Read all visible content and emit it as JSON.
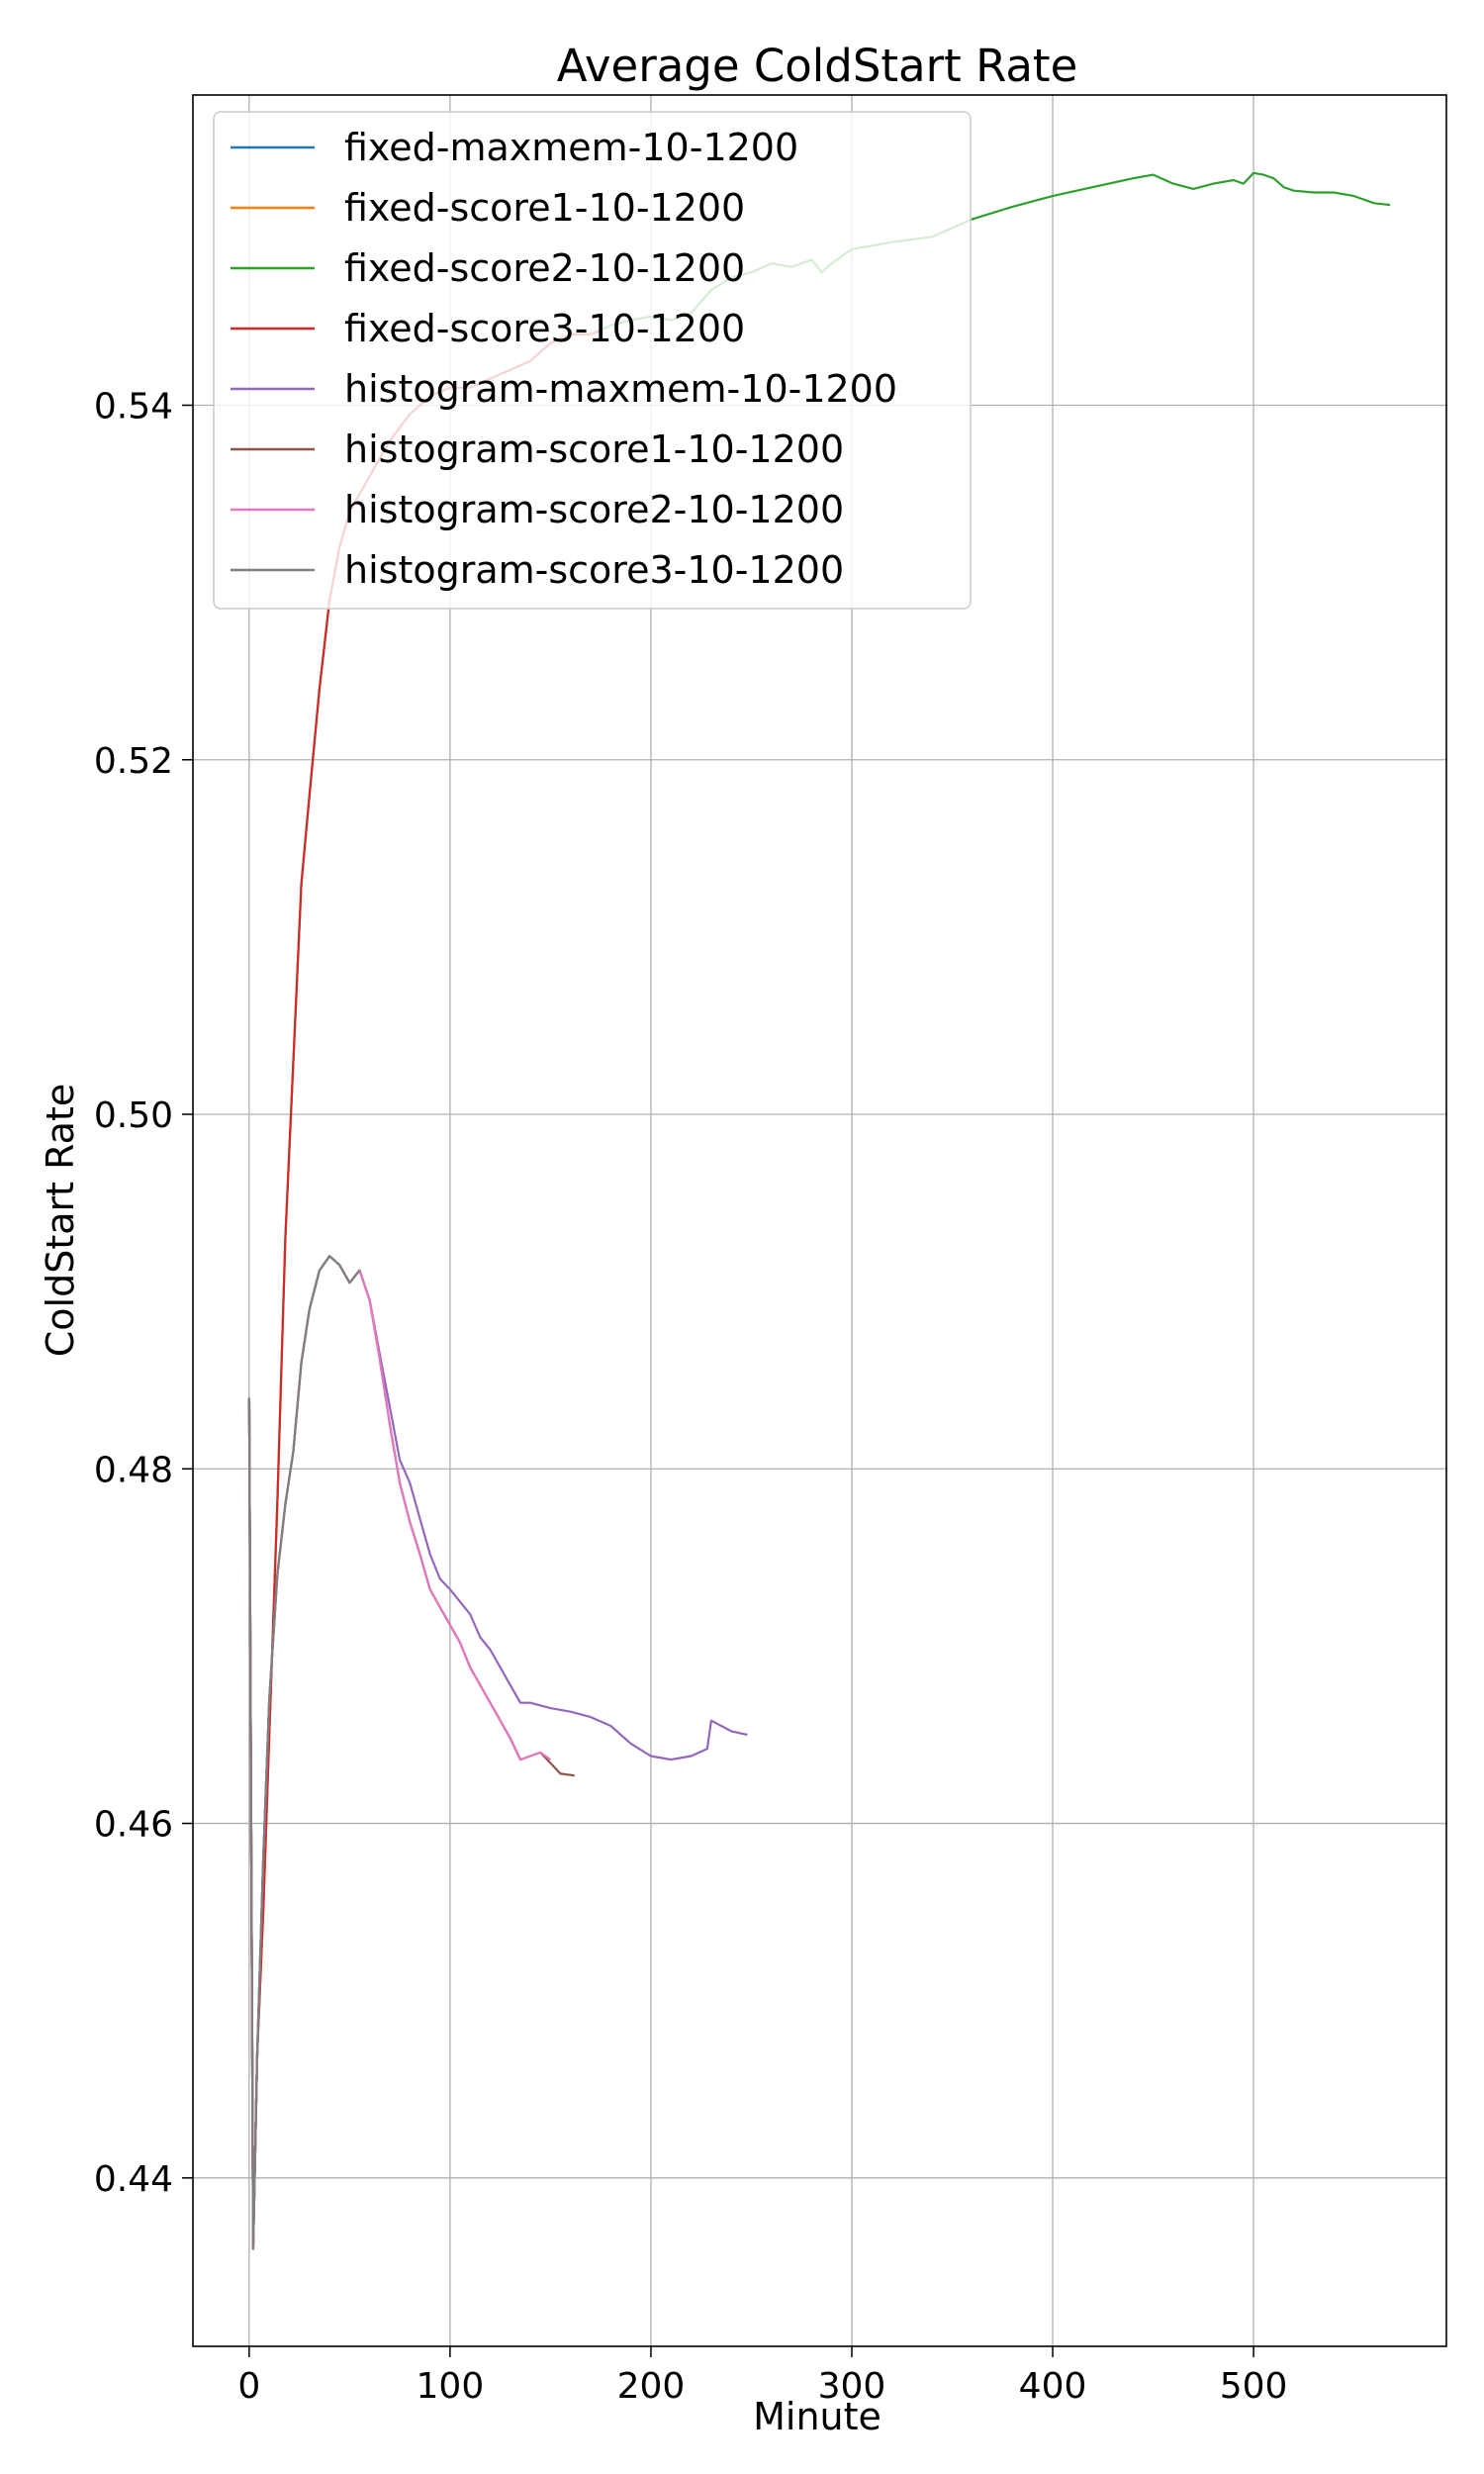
{
  "chart_data": {
    "type": "line",
    "title": "Average ColdStart Rate",
    "xlabel": "Minute",
    "ylabel": "ColdStart Rate",
    "xlim": [
      -28,
      596
    ],
    "ylim": [
      0.4305,
      0.5575
    ],
    "xticks": [
      0,
      100,
      200,
      300,
      400,
      500
    ],
    "yticks": [
      0.44,
      0.46,
      0.48,
      0.5,
      0.52,
      0.54
    ],
    "xtick_labels": [
      "0",
      "100",
      "200",
      "300",
      "400",
      "500"
    ],
    "ytick_labels": [
      "0.44",
      "0.46",
      "0.48",
      "0.50",
      "0.52",
      "0.54"
    ],
    "grid": true,
    "legend_position": "top-left",
    "series": [
      {
        "name": "fixed-maxmem-10-1200",
        "color": "#1f77b4",
        "x": [
          0,
          2,
          4
        ],
        "y": [
          0.484,
          0.436,
          0.447
        ]
      },
      {
        "name": "fixed-score1-10-1200",
        "color": "#ff7f0e",
        "x": [
          0,
          2,
          4
        ],
        "y": [
          0.484,
          0.436,
          0.447
        ]
      },
      {
        "name": "fixed-score2-10-1200",
        "color": "#2ca02c",
        "x": [
          0,
          2,
          4,
          7,
          10,
          14,
          18,
          22,
          26,
          30,
          35,
          40,
          45,
          50,
          60,
          70,
          80,
          90,
          100,
          110,
          120,
          130,
          140,
          150,
          160,
          170,
          180,
          190,
          200,
          210,
          220,
          230,
          240,
          250,
          260,
          270,
          280,
          285,
          290,
          300,
          320,
          340,
          360,
          380,
          400,
          420,
          440,
          450,
          460,
          470,
          480,
          490,
          495,
          500,
          505,
          510,
          515,
          520,
          530,
          540,
          550,
          560,
          568
        ],
        "y": [
          0.484,
          0.436,
          0.447,
          0.455,
          0.465,
          0.478,
          0.493,
          0.503,
          0.513,
          0.518,
          0.524,
          0.529,
          0.532,
          0.534,
          0.536,
          0.538,
          0.5395,
          0.5405,
          0.541,
          0.541,
          0.5415,
          0.542,
          0.5425,
          0.5435,
          0.544,
          0.544,
          0.5445,
          0.5448,
          0.545,
          0.5448,
          0.5452,
          0.5465,
          0.5472,
          0.5475,
          0.548,
          0.5478,
          0.5482,
          0.5475,
          0.548,
          0.5488,
          0.5492,
          0.5495,
          0.5505,
          0.5512,
          0.5518,
          0.5523,
          0.5528,
          0.553,
          0.5525,
          0.5522,
          0.5525,
          0.5527,
          0.5525,
          0.5531,
          0.553,
          0.5528,
          0.5523,
          0.5521,
          0.552,
          0.552,
          0.5518,
          0.5514,
          0.5513
        ]
      },
      {
        "name": "fixed-score3-10-1200",
        "color": "#d62728",
        "x": [
          0,
          2,
          4,
          7,
          10,
          14,
          18,
          22,
          26,
          30,
          35,
          40,
          45,
          50,
          60,
          70,
          80,
          90,
          100,
          110,
          120,
          130,
          140,
          150,
          160,
          170,
          175
        ],
        "y": [
          0.484,
          0.436,
          0.447,
          0.455,
          0.465,
          0.478,
          0.493,
          0.503,
          0.513,
          0.518,
          0.524,
          0.529,
          0.532,
          0.534,
          0.536,
          0.538,
          0.5395,
          0.5405,
          0.541,
          0.541,
          0.5415,
          0.542,
          0.5425,
          0.5435,
          0.544,
          0.544,
          0.5442
        ]
      },
      {
        "name": "histogram-maxmem-10-1200",
        "color": "#9467bd",
        "x": [
          0,
          2,
          4,
          7,
          10,
          14,
          18,
          22,
          26,
          30,
          35,
          40,
          45,
          50,
          55,
          60,
          65,
          70,
          75,
          80,
          85,
          90,
          95,
          100,
          105,
          110,
          115,
          120,
          125,
          130,
          135,
          140,
          150,
          160,
          170,
          180,
          190,
          200,
          210,
          220,
          228,
          230,
          235,
          240,
          248
        ],
        "y": [
          0.484,
          0.436,
          0.447,
          0.458,
          0.467,
          0.474,
          0.478,
          0.481,
          0.486,
          0.489,
          0.4912,
          0.492,
          0.4915,
          0.4905,
          0.4912,
          0.4895,
          0.4865,
          0.4835,
          0.4805,
          0.4792,
          0.4772,
          0.4752,
          0.4738,
          0.4732,
          0.4725,
          0.4718,
          0.4705,
          0.4698,
          0.4688,
          0.4678,
          0.4668,
          0.4668,
          0.4665,
          0.4663,
          0.466,
          0.4655,
          0.4645,
          0.4638,
          0.4636,
          0.4638,
          0.4642,
          0.4658,
          0.4655,
          0.4652,
          0.465
        ]
      },
      {
        "name": "histogram-score1-10-1200",
        "color": "#8c564b",
        "x": [
          0,
          2,
          4,
          7,
          10,
          14,
          18,
          22,
          26,
          30,
          35,
          40,
          45,
          50,
          55,
          60,
          65,
          70,
          75,
          80,
          85,
          90,
          95,
          100,
          105,
          110,
          115,
          120,
          125,
          130,
          135,
          140,
          145,
          150,
          155,
          162
        ],
        "y": [
          0.484,
          0.436,
          0.447,
          0.458,
          0.467,
          0.474,
          0.478,
          0.481,
          0.486,
          0.489,
          0.4912,
          0.492,
          0.4915,
          0.4905,
          0.4912,
          0.4895,
          0.4862,
          0.4825,
          0.4792,
          0.477,
          0.4752,
          0.4732,
          0.4722,
          0.4712,
          0.4702,
          0.4688,
          0.4678,
          0.4668,
          0.4658,
          0.4648,
          0.4636,
          0.4638,
          0.464,
          0.4634,
          0.4628,
          0.4627
        ]
      },
      {
        "name": "histogram-score2-10-1200",
        "color": "#e377c2",
        "x": [
          0,
          2,
          4,
          7,
          10,
          14,
          18,
          22,
          26,
          30,
          35,
          40,
          45,
          50,
          55,
          60,
          65,
          70,
          75,
          80,
          85,
          90,
          95,
          100,
          105,
          110,
          115,
          120,
          125,
          130,
          135,
          140,
          145,
          150
        ],
        "y": [
          0.484,
          0.436,
          0.447,
          0.458,
          0.467,
          0.474,
          0.478,
          0.481,
          0.486,
          0.489,
          0.4912,
          0.492,
          0.4915,
          0.4905,
          0.4912,
          0.4895,
          0.4862,
          0.4825,
          0.4792,
          0.477,
          0.4752,
          0.4732,
          0.4722,
          0.4712,
          0.4702,
          0.4688,
          0.4678,
          0.4668,
          0.4658,
          0.4648,
          0.4636,
          0.4638,
          0.464,
          0.4636
        ]
      },
      {
        "name": "histogram-score3-10-1200",
        "color": "#7f7f7f",
        "x": [
          0,
          2,
          4,
          7,
          10,
          14,
          18,
          22,
          26,
          30,
          35,
          40,
          45,
          50,
          55
        ],
        "y": [
          0.484,
          0.436,
          0.447,
          0.458,
          0.467,
          0.474,
          0.478,
          0.481,
          0.486,
          0.489,
          0.4912,
          0.492,
          0.4915,
          0.4905,
          0.4912
        ]
      }
    ]
  }
}
